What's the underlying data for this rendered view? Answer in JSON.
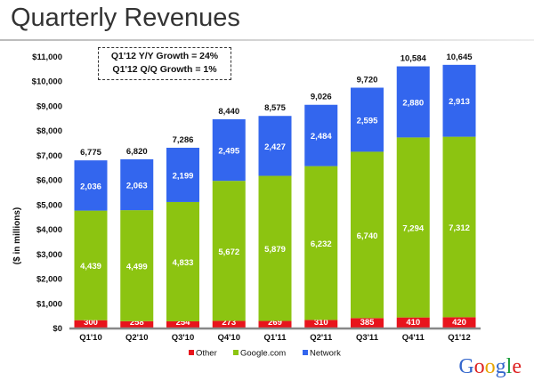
{
  "page": {
    "title": "Quarterly Revenues",
    "note_lines": [
      "Q1'12 Y/Y Growth = 24%",
      "Q1'12 Q/Q Growth = 1%"
    ],
    "logo": "Google"
  },
  "chart_data": {
    "type": "bar",
    "stacked": true,
    "categories": [
      "Q1'10",
      "Q2'10",
      "Q3'10",
      "Q4'10",
      "Q1'11",
      "Q2'11",
      "Q3'11",
      "Q4'11",
      "Q1'12"
    ],
    "series": [
      {
        "name": "Other",
        "color": "#e8141c",
        "values": [
          300,
          258,
          254,
          273,
          269,
          310,
          385,
          410,
          420
        ]
      },
      {
        "name": "Google.com",
        "color": "#8cc411",
        "values": [
          4439,
          4499,
          4833,
          5672,
          5879,
          6232,
          6740,
          7294,
          7312
        ]
      },
      {
        "name": "Network",
        "color": "#3366ee",
        "values": [
          2036,
          2063,
          2199,
          2495,
          2427,
          2484,
          2595,
          2880,
          2913
        ]
      }
    ],
    "totals": [
      6775,
      6820,
      7286,
      8440,
      8575,
      9026,
      9720,
      10584,
      10645
    ],
    "ylabel": "($ in millions)",
    "ylim": [
      0,
      11000
    ],
    "yticks": [
      "$0",
      "$1,000",
      "$2,000",
      "$3,000",
      "$4,000",
      "$5,000",
      "$6,000",
      "$7,000",
      "$8,000",
      "$9,000",
      "$10,000",
      "$11,000"
    ],
    "legend_position": "bottom",
    "grid": false
  }
}
